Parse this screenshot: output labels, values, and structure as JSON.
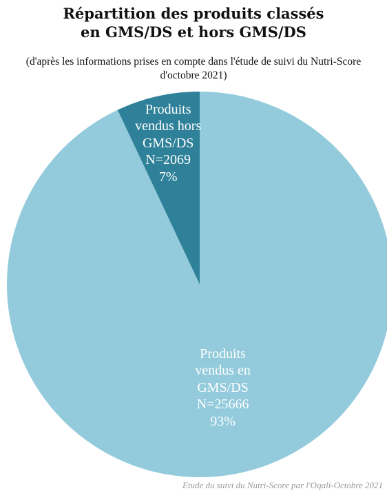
{
  "chart_data": {
    "type": "pie",
    "title": "Répartition des produits classés en GMS/DS et hors GMS/DS",
    "subtitle": "(d'après les informations prises en compte dans l'étude de suivi du Nutri-Score d'octobre 2021)",
    "categories": [
      "Produits vendus en GMS/DS",
      "Produits vendus hors GMS/DS"
    ],
    "values": [
      93,
      7
    ],
    "value_labels": [
      "93%",
      "7%"
    ],
    "counts": [
      25666,
      2069
    ],
    "count_labels": [
      "N=25666",
      "N=2069"
    ],
    "colors": [
      "#93cbdc",
      "#2f8199"
    ],
    "source": "Etude du suivi du Nutri-Score par l'Oqali-Octobre 2021"
  }
}
